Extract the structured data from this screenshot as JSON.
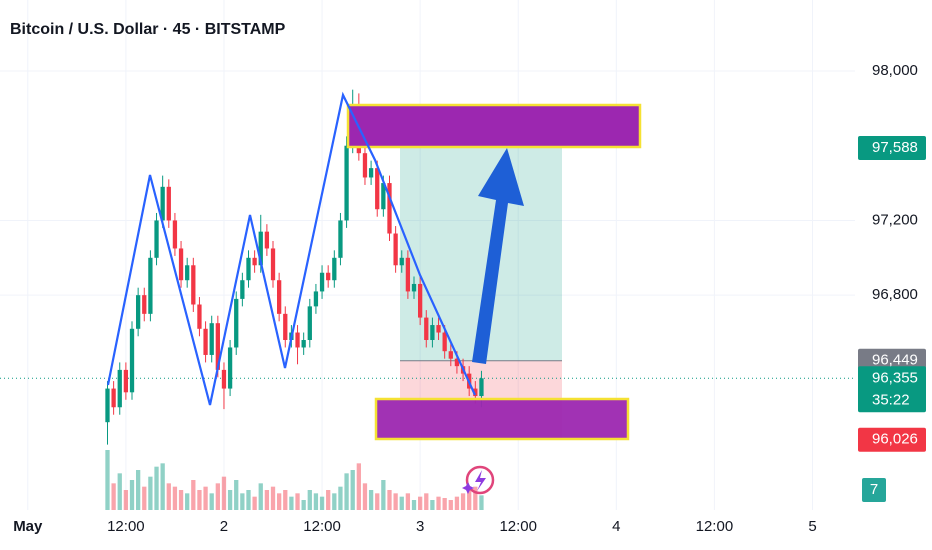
{
  "chart_data": {
    "type": "candlestick",
    "title": "Bitcoin / U.S. Dollar · 45 · BITSTAMP",
    "x": [
      9.75,
      10.5,
      11.25,
      12,
      12.75,
      13.5,
      14.25,
      15,
      15.75,
      16.5,
      17.25,
      18,
      18.75,
      19.5,
      20.25,
      21,
      21.75,
      22.5,
      23.25,
      24,
      24.75,
      25.5,
      26.25,
      27,
      27.75,
      28.5,
      29.25,
      30,
      30.75,
      31.5,
      32.25,
      33,
      33.75,
      34.5,
      35.25,
      36,
      36.75,
      37.5,
      38.25,
      39,
      39.75,
      40.5,
      41.25,
      42,
      42.75,
      43.5,
      44.25,
      45,
      45.75,
      46.5,
      47.25,
      48,
      48.75,
      49.5,
      50.25,
      51,
      51.75,
      52.5,
      53.25,
      54,
      54.75,
      55.5
    ],
    "open": [
      96120,
      96300,
      96200,
      96400,
      96280,
      96620,
      96800,
      96700,
      97000,
      97200,
      97380,
      97200,
      97050,
      96880,
      96960,
      96750,
      96620,
      96480,
      96650,
      96400,
      96300,
      96520,
      96780,
      96880,
      97000,
      96960,
      97140,
      97050,
      96880,
      96700,
      96560,
      96600,
      96520,
      96560,
      96740,
      96820,
      96920,
      96880,
      97000,
      97200,
      97600,
      97780,
      97560,
      97430,
      97480,
      97260,
      97400,
      97130,
      96960,
      97000,
      96820,
      96860,
      96680,
      96560,
      96640,
      96600,
      96500,
      96460,
      96420,
      96380,
      96300,
      96260
    ],
    "high": [
      96340,
      96340,
      96440,
      96440,
      96660,
      96840,
      96840,
      97040,
      97240,
      97440,
      97420,
      97240,
      97090,
      97000,
      97000,
      96790,
      96660,
      96690,
      96690,
      96440,
      96560,
      96820,
      96920,
      97040,
      97040,
      97230,
      97180,
      97090,
      96920,
      96740,
      96640,
      96640,
      96600,
      96780,
      96860,
      96960,
      96960,
      97040,
      97240,
      97650,
      97900,
      97880,
      97600,
      97520,
      97520,
      97440,
      97440,
      97170,
      97040,
      97040,
      96900,
      96900,
      96720,
      96680,
      96680,
      96640,
      96540,
      96500,
      96460,
      96420,
      96340,
      96395
    ],
    "low": [
      96000,
      96160,
      96160,
      96240,
      96240,
      96580,
      96660,
      96660,
      96960,
      97160,
      97160,
      97010,
      96840,
      96840,
      96710,
      96580,
      96440,
      96440,
      96360,
      96190,
      96260,
      96480,
      96740,
      96840,
      96920,
      96920,
      97010,
      96840,
      96660,
      96520,
      96520,
      96430,
      96480,
      96520,
      96700,
      96780,
      96840,
      96840,
      96960,
      97160,
      97560,
      97520,
      97390,
      97390,
      97220,
      97220,
      97090,
      96920,
      96920,
      96780,
      96780,
      96640,
      96520,
      96520,
      96560,
      96460,
      96420,
      96380,
      96340,
      96260,
      96220,
      96200
    ],
    "close": [
      96300,
      96200,
      96400,
      96280,
      96620,
      96800,
      96700,
      97000,
      97200,
      97380,
      97200,
      97050,
      96880,
      96960,
      96750,
      96620,
      96480,
      96650,
      96400,
      96300,
      96520,
      96780,
      96880,
      97000,
      96960,
      97140,
      97050,
      96880,
      96700,
      96560,
      96600,
      96520,
      96560,
      96740,
      96820,
      96920,
      96880,
      97000,
      97200,
      97600,
      97780,
      97560,
      97430,
      97480,
      97260,
      97400,
      97130,
      96960,
      97000,
      96820,
      96860,
      96680,
      96560,
      96640,
      96600,
      96500,
      96460,
      96420,
      96380,
      96300,
      96260,
      96355
    ],
    "volume": [
      90,
      40,
      55,
      30,
      45,
      60,
      35,
      50,
      65,
      70,
      40,
      35,
      30,
      25,
      45,
      30,
      35,
      25,
      40,
      50,
      30,
      45,
      25,
      30,
      20,
      40,
      30,
      35,
      25,
      30,
      20,
      25,
      15,
      30,
      25,
      20,
      30,
      25,
      35,
      55,
      60,
      70,
      40,
      30,
      25,
      45,
      30,
      25,
      20,
      25,
      15,
      20,
      25,
      15,
      20,
      18,
      15,
      20,
      25,
      30,
      35,
      22
    ],
    "up_color": "#089981",
    "down_color": "#f23645",
    "xlim": [
      -3.4,
      101.2
    ],
    "ylim": [
      95650,
      98380
    ],
    "xticks": [
      {
        "value": 0,
        "label": "May"
      },
      {
        "value": 12,
        "label": "12:00"
      },
      {
        "value": 24,
        "label": "2"
      },
      {
        "value": 36,
        "label": "12:00"
      },
      {
        "value": 48,
        "label": "3"
      },
      {
        "value": 60,
        "label": "12:00"
      },
      {
        "value": 72,
        "label": "4"
      },
      {
        "value": 84,
        "label": "12:00"
      },
      {
        "value": 96,
        "label": "5"
      }
    ],
    "yticks": [
      {
        "value": 96800,
        "label": "96,800"
      },
      {
        "value": 97200,
        "label": "97,200"
      },
      {
        "value": 98000,
        "label": "98,000"
      }
    ],
    "grid": true,
    "price_labels": [
      {
        "value": 97588,
        "label": "97,588",
        "color": "#089981"
      },
      {
        "value": 96449,
        "label": "96,449",
        "color": "#787b86"
      },
      {
        "value": 96355,
        "label": "96,355",
        "color": "#089981",
        "countdown": "35:22"
      },
      {
        "value": 96026,
        "label": "96,026",
        "color": "#f23645"
      }
    ],
    "indicator_badge": "7"
  }
}
